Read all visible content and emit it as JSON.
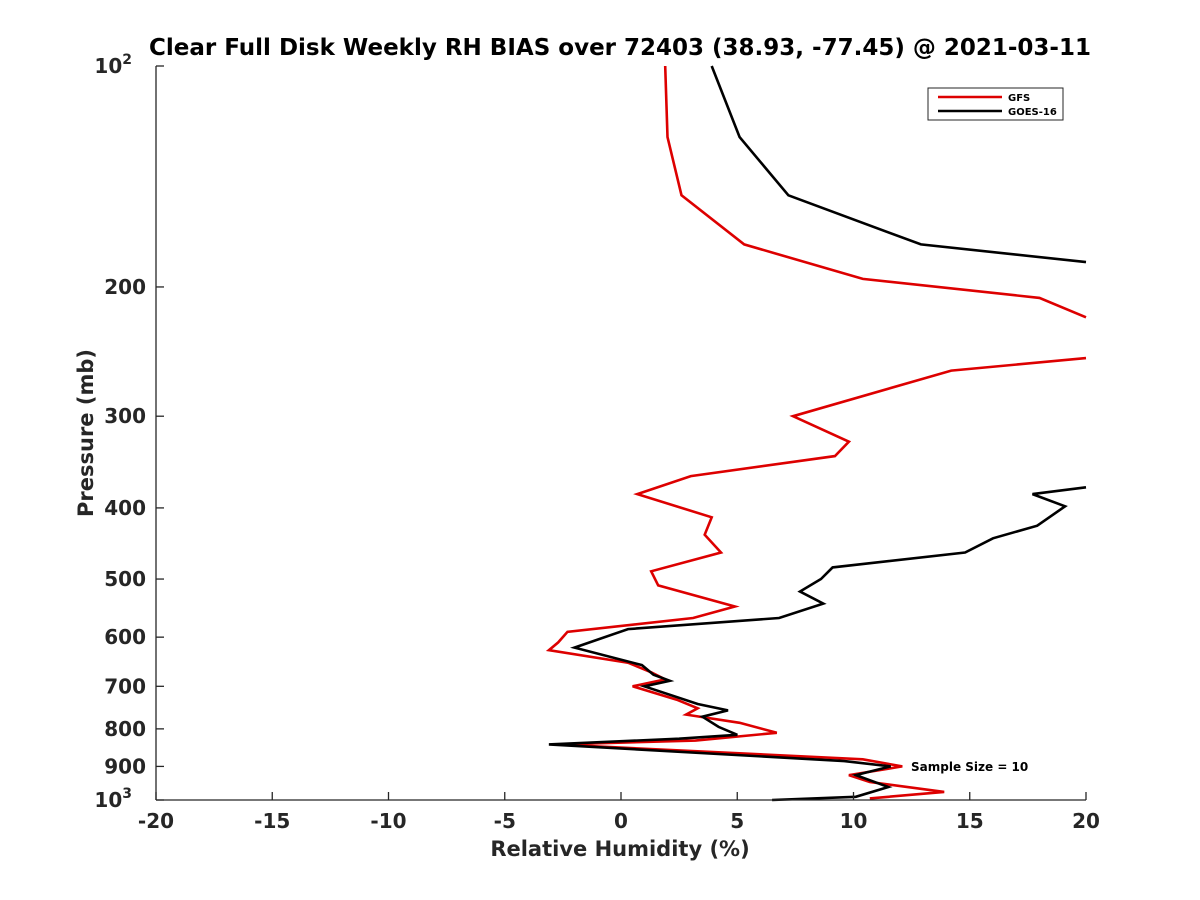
{
  "chart_data": {
    "type": "line",
    "title": "Clear Full Disk Weekly RH BIAS over 72403 (38.93, -77.45) @ 2021-03-11",
    "xlabel": "Relative Humidity (%)",
    "ylabel": "Pressure (mb)",
    "xlim": [
      -20,
      20
    ],
    "ylim": [
      100,
      1000
    ],
    "y_scale": "log",
    "y_reversed": true,
    "x_ticks": [
      {
        "value": -20,
        "label": "-20"
      },
      {
        "value": -15,
        "label": "-15"
      },
      {
        "value": -10,
        "label": "-10"
      },
      {
        "value": -5,
        "label": "-5"
      },
      {
        "value": 0,
        "label": "0"
      },
      {
        "value": 5,
        "label": "5"
      },
      {
        "value": 10,
        "label": "10"
      },
      {
        "value": 15,
        "label": "15"
      },
      {
        "value": 20,
        "label": "20"
      }
    ],
    "y_ticks": [
      {
        "value": 100,
        "label": "10",
        "sup": "2"
      },
      {
        "value": 200,
        "label": "200",
        "sup": ""
      },
      {
        "value": 300,
        "label": "300",
        "sup": ""
      },
      {
        "value": 400,
        "label": "400",
        "sup": ""
      },
      {
        "value": 500,
        "label": "500",
        "sup": ""
      },
      {
        "value": 600,
        "label": "600",
        "sup": ""
      },
      {
        "value": 700,
        "label": "700",
        "sup": ""
      },
      {
        "value": 800,
        "label": "800",
        "sup": ""
      },
      {
        "value": 900,
        "label": "900",
        "sup": ""
      },
      {
        "value": 1000,
        "label": "10",
        "sup": "3"
      }
    ],
    "grid": false,
    "legend_position": "top-right",
    "annotation": "Sample Size = 10",
    "series": [
      {
        "name": "GFS",
        "color": "#dd0000",
        "points": [
          [
            1.9,
            100
          ],
          [
            2.0,
            125
          ],
          [
            2.6,
            150
          ],
          [
            5.3,
            175
          ],
          [
            10.4,
            195
          ],
          [
            18.0,
            207
          ],
          [
            20.0,
            220
          ],
          [
            null,
            null
          ],
          [
            20.0,
            250
          ],
          [
            14.2,
            260
          ],
          [
            7.4,
            300
          ],
          [
            9.8,
            325
          ],
          [
            9.2,
            340
          ],
          [
            3.0,
            362
          ],
          [
            0.7,
            383
          ],
          [
            3.9,
            412
          ],
          [
            3.6,
            435
          ],
          [
            4.3,
            460
          ],
          [
            1.3,
            488
          ],
          [
            1.6,
            510
          ],
          [
            4.9,
            545
          ],
          [
            3.1,
            565
          ],
          [
            -2.3,
            590
          ],
          [
            -2.7,
            610
          ],
          [
            -3.1,
            625
          ],
          [
            0.3,
            650
          ],
          [
            1.3,
            670
          ],
          [
            1.9,
            685
          ],
          [
            0.5,
            700
          ],
          [
            2.4,
            730
          ],
          [
            3.3,
            750
          ],
          [
            2.8,
            765
          ],
          [
            5.1,
            785
          ],
          [
            6.7,
            810
          ],
          [
            3.2,
            830
          ],
          [
            -2.8,
            840
          ],
          [
            10.4,
            880
          ],
          [
            12.1,
            900
          ],
          [
            9.8,
            925
          ],
          [
            10.7,
            945
          ],
          [
            13.9,
            975
          ],
          [
            10.7,
            995
          ]
        ]
      },
      {
        "name": "GOES-16",
        "color": "#000000",
        "points": [
          [
            3.9,
            100
          ],
          [
            5.1,
            125
          ],
          [
            7.2,
            150
          ],
          [
            12.9,
            175
          ],
          [
            20.0,
            185
          ],
          [
            null,
            null
          ],
          [
            20.0,
            375
          ],
          [
            17.7,
            383
          ],
          [
            19.1,
            398
          ],
          [
            17.9,
            423
          ],
          [
            16.0,
            440
          ],
          [
            14.8,
            460
          ],
          [
            9.1,
            482
          ],
          [
            8.6,
            500
          ],
          [
            7.7,
            520
          ],
          [
            8.7,
            540
          ],
          [
            6.8,
            565
          ],
          [
            0.3,
            585
          ],
          [
            -2.0,
            620
          ],
          [
            0.9,
            655
          ],
          [
            1.4,
            675
          ],
          [
            2.1,
            688
          ],
          [
            1.0,
            700
          ],
          [
            3.3,
            740
          ],
          [
            4.6,
            755
          ],
          [
            3.5,
            770
          ],
          [
            4.2,
            795
          ],
          [
            5.0,
            815
          ],
          [
            2.5,
            825
          ],
          [
            -3.1,
            840
          ],
          [
            9.6,
            885
          ],
          [
            11.6,
            900
          ],
          [
            10.1,
            925
          ],
          [
            11.5,
            960
          ],
          [
            10.1,
            990
          ],
          [
            6.5,
            1000
          ]
        ]
      }
    ]
  }
}
